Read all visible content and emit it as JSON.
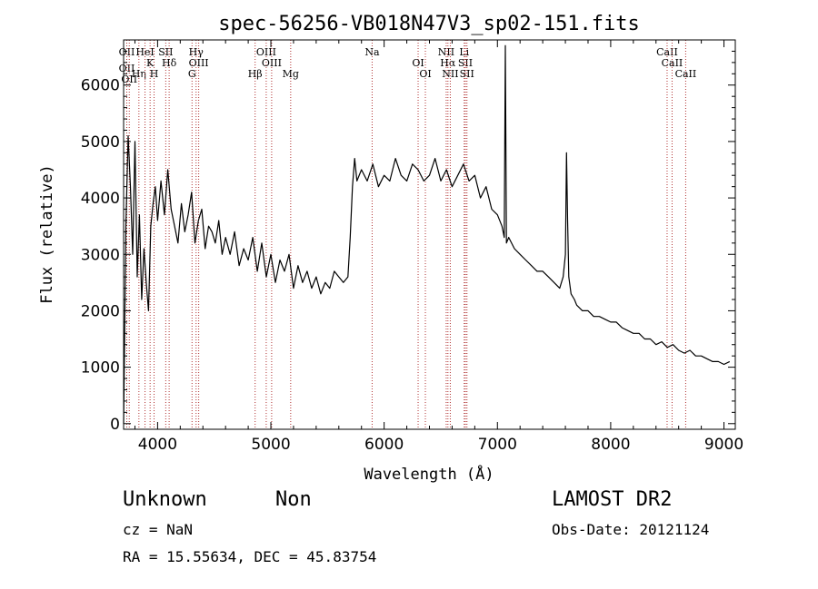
{
  "chart_data": {
    "type": "line",
    "title": "spec-56256-VB018N47V3_sp02-151.fits",
    "xlabel": "Wavelength (Å)",
    "ylabel": "Flux (relative)",
    "xlim": [
      3700,
      9100
    ],
    "ylim": [
      -100,
      6800
    ],
    "xticks": [
      "4000",
      "5000",
      "6000",
      "7000",
      "8000",
      "9000"
    ],
    "xtick_values": [
      4000,
      5000,
      6000,
      7000,
      8000,
      9000
    ],
    "yticks": [
      "0",
      "1000",
      "2000",
      "3000",
      "4000",
      "5000",
      "6000"
    ],
    "ytick_values": [
      0,
      1000,
      2000,
      3000,
      4000,
      5000,
      6000
    ],
    "grid": false,
    "series": [
      {
        "x": [
          3700,
          3720,
          3740,
          3760,
          3780,
          3800,
          3820,
          3840,
          3860,
          3880,
          3900,
          3920,
          3940,
          3960,
          3980,
          4000,
          4030,
          4060,
          4090,
          4120,
          4150,
          4180,
          4210,
          4240,
          4270,
          4300,
          4330,
          4360,
          4390,
          4420,
          4450,
          4480,
          4510,
          4540,
          4570,
          4600,
          4640,
          4680,
          4720,
          4760,
          4800,
          4840,
          4880,
          4920,
          4960,
          5000,
          5040,
          5080,
          5120,
          5160,
          5200,
          5240,
          5280,
          5320,
          5360,
          5400,
          5440,
          5480,
          5520,
          5560,
          5600,
          5640,
          5680,
          5700,
          5720,
          5740,
          5760,
          5800,
          5850,
          5900,
          5950,
          6000,
          6050,
          6100,
          6150,
          6200,
          6250,
          6300,
          6350,
          6400,
          6450,
          6500,
          6550,
          6600,
          6650,
          6700,
          6750,
          6800,
          6850,
          6900,
          6950,
          7000,
          7040,
          7060,
          7070,
          7080,
          7100,
          7150,
          7200,
          7250,
          7300,
          7350,
          7400,
          7450,
          7500,
          7550,
          7580,
          7600,
          7610,
          7620,
          7630,
          7650,
          7680,
          7700,
          7750,
          7800,
          7850,
          7900,
          7950,
          8000,
          8050,
          8100,
          8150,
          8200,
          8250,
          8300,
          8350,
          8400,
          8450,
          8500,
          8550,
          8600,
          8650,
          8700,
          8750,
          8800,
          8850,
          8900,
          8950,
          9000,
          9050
        ],
        "y": [
          0,
          3500,
          5100,
          4200,
          3000,
          5000,
          2600,
          3700,
          2200,
          3100,
          2500,
          2000,
          3500,
          3900,
          4200,
          3600,
          4300,
          3700,
          4500,
          3800,
          3500,
          3200,
          3900,
          3400,
          3700,
          4100,
          3200,
          3600,
          3800,
          3100,
          3500,
          3400,
          3200,
          3600,
          3000,
          3300,
          3000,
          3400,
          2800,
          3100,
          2900,
          3300,
          2700,
          3200,
          2600,
          3000,
          2500,
          2900,
          2700,
          3000,
          2400,
          2800,
          2500,
          2700,
          2400,
          2600,
          2300,
          2500,
          2400,
          2700,
          2600,
          2500,
          2600,
          3300,
          4200,
          4700,
          4300,
          4500,
          4300,
          4600,
          4200,
          4400,
          4300,
          4700,
          4400,
          4300,
          4600,
          4500,
          4300,
          4400,
          4700,
          4300,
          4500,
          4200,
          4400,
          4600,
          4300,
          4400,
          4000,
          4200,
          3800,
          3700,
          3500,
          3300,
          6700,
          3200,
          3300,
          3100,
          3000,
          2900,
          2800,
          2700,
          2700,
          2600,
          2500,
          2400,
          2600,
          3000,
          4800,
          3600,
          2600,
          2300,
          2200,
          2100,
          2000,
          2000,
          1900,
          1900,
          1850,
          1800,
          1800,
          1700,
          1650,
          1600,
          1600,
          1500,
          1500,
          1400,
          1450,
          1350,
          1400,
          1300,
          1250,
          1300,
          1200,
          1200,
          1150,
          1100,
          1100,
          1050,
          1100
        ]
      }
    ],
    "lines": [
      {
        "wave": 3728,
        "labels": [
          "OII",
          "OII"
        ],
        "color": "#b03030"
      },
      {
        "wave": 3750,
        "labels": [
          "",
          "OII"
        ],
        "color": "#b03030"
      },
      {
        "wave": 3835,
        "labels": [
          "Hη"
        ],
        "color": "#b03030"
      },
      {
        "wave": 3889,
        "labels": [
          "HeI"
        ],
        "color": "#b03030"
      },
      {
        "wave": 3934,
        "labels": [
          "K"
        ],
        "color": "#b03030"
      },
      {
        "wave": 3969,
        "labels": [
          "H"
        ],
        "color": "#b03030"
      },
      {
        "wave": 4072,
        "labels": [
          "SII"
        ],
        "color": "#b03030"
      },
      {
        "wave": 4102,
        "labels": [
          "Hδ"
        ],
        "color": "#b03030"
      },
      {
        "wave": 4304,
        "labels": [
          "G"
        ],
        "color": "#b03030"
      },
      {
        "wave": 4340,
        "labels": [
          "Hγ"
        ],
        "color": "#b03030"
      },
      {
        "wave": 4363,
        "labels": [
          "OIII"
        ],
        "color": "#b03030"
      },
      {
        "wave": 4861,
        "labels": [
          "Hβ"
        ],
        "color": "#b03030"
      },
      {
        "wave": 4959,
        "labels": [
          "OIII"
        ],
        "color": "#b03030"
      },
      {
        "wave": 5007,
        "labels": [
          "OIII"
        ],
        "color": "#b03030"
      },
      {
        "wave": 5175,
        "labels": [
          "Mg"
        ],
        "color": "#b03030"
      },
      {
        "wave": 5894,
        "labels": [
          "Na"
        ],
        "color": "#b03030"
      },
      {
        "wave": 6300,
        "labels": [
          "OI"
        ],
        "color": "#b03030"
      },
      {
        "wave": 6364,
        "labels": [
          "OI"
        ],
        "color": "#b03030"
      },
      {
        "wave": 6548,
        "labels": [
          "NII"
        ],
        "color": "#b03030"
      },
      {
        "wave": 6563,
        "labels": [
          "Hα"
        ],
        "color": "#b03030"
      },
      {
        "wave": 6584,
        "labels": [
          "NII"
        ],
        "color": "#b03030"
      },
      {
        "wave": 6707,
        "labels": [
          "Li"
        ],
        "color": "#b03030"
      },
      {
        "wave": 6717,
        "labels": [
          "SII"
        ],
        "color": "#b03030"
      },
      {
        "wave": 6731,
        "labels": [
          "SII"
        ],
        "color": "#b03030"
      },
      {
        "wave": 8498,
        "labels": [
          "CaII"
        ],
        "color": "#b03030"
      },
      {
        "wave": 8542,
        "labels": [
          "CaII"
        ],
        "color": "#b03030"
      },
      {
        "wave": 8662,
        "labels": [
          "CaII"
        ],
        "color": "#b03030"
      }
    ]
  },
  "footer": {
    "class_label": "Unknown",
    "subclass_label": "Non",
    "survey": "LAMOST DR2",
    "redshift": "cz = NaN",
    "obs_date": "Obs-Date: 20121124",
    "coords": "RA =  15.55634, DEC =  45.83754"
  },
  "colors": {
    "spectrum": "#000000",
    "line_markers": "#b03030",
    "background": "#ffffff"
  }
}
